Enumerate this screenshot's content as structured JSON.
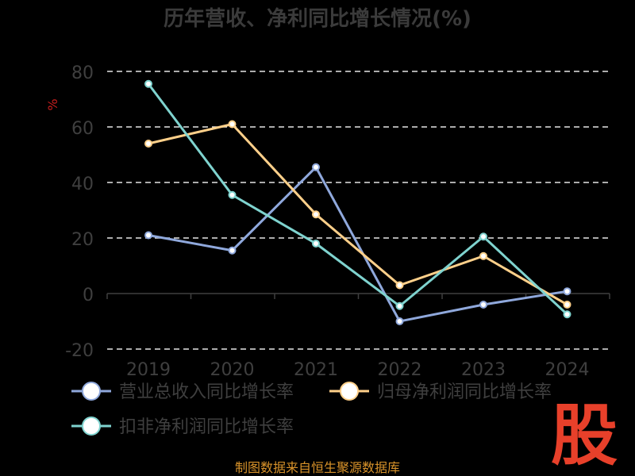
{
  "chart_data": {
    "type": "line",
    "title": "历年营收、净利同比增长情况(%)",
    "ylabel": "%",
    "categories": [
      "2019",
      "2020",
      "2021",
      "2022",
      "2023",
      "2024"
    ],
    "ylim": [
      -20,
      80
    ],
    "yticks": [
      80,
      60,
      40,
      20,
      0,
      -20
    ],
    "grid": true,
    "legend_position": "bottom-left",
    "series": [
      {
        "name": "营业总收入同比增长率",
        "color": "#8fa8dc",
        "values": [
          21.0,
          15.5,
          45.5,
          -10.0,
          -4.0,
          0.8
        ]
      },
      {
        "name": "归母净利润同比增长率",
        "color": "#ffd08a",
        "values": [
          54.0,
          61.0,
          28.5,
          3.0,
          13.5,
          -4.0
        ]
      },
      {
        "name": "扣非净利润同比增长率",
        "color": "#7fd3cf",
        "values": [
          75.5,
          35.5,
          18.0,
          -4.5,
          20.5,
          -7.5
        ]
      }
    ]
  },
  "source": "制图数据来自恒生聚源数据库",
  "logo": "股"
}
